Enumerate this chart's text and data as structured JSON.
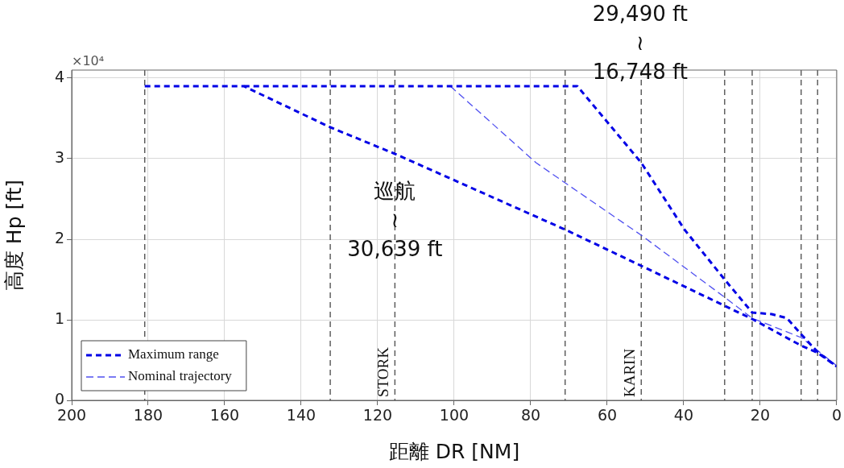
{
  "chart_data": {
    "type": "line",
    "xlabel": "距離 DR [NM]",
    "ylabel": "高度 Hp [ft]",
    "xlim": [
      200,
      0
    ],
    "xticks": [
      200,
      180,
      160,
      140,
      120,
      100,
      80,
      60,
      40,
      20,
      0
    ],
    "ylim": [
      0,
      4.1
    ],
    "yticks": [
      0,
      1,
      2,
      3,
      4
    ],
    "grid": true,
    "legend": "bottom left",
    "marker": "none",
    "line_style": "dashed",
    "series": [
      {
        "name": "Maximum range",
        "color": "#0000e6",
        "x": [
          180.9,
          155,
          132.4,
          115.5,
          71,
          51.1,
          22.1,
          9.3,
          5,
          0
        ],
        "values": [
          3.9,
          3.9,
          3.39,
          3.06,
          2.12,
          1.67,
          1.01,
          0.68,
          0.59,
          0.42
        ]
      },
      {
        "color": "#0000e6",
        "x": [
          155,
          67.8,
          51.1,
          39.8,
          29.3,
          22.1,
          17,
          13,
          9.3,
          5,
          0
        ],
        "values": [
          3.9,
          3.9,
          2.95,
          2.12,
          1.5,
          1.09,
          1.07,
          1.02,
          0.82,
          0.6,
          0.42
        ]
      },
      {
        "name": "Nominal trajectory",
        "color": "#5050f0",
        "x": [
          101,
          78.6,
          71,
          51.1,
          29.3,
          22.1,
          9.3,
          0
        ],
        "values": [
          3.9,
          2.95,
          2.7,
          2.05,
          1.28,
          1.02,
          0.78,
          0.43
        ]
      }
    ],
    "ref_lines": [
      {
        "axis": "x",
        "value": 180.9,
        "label": null,
        "color": "#555555",
        "line_style": "dashed"
      },
      {
        "axis": "x",
        "value": 132.4,
        "label": null,
        "color": "#555555",
        "line_style": "dashed"
      },
      {
        "axis": "x",
        "value": 115.5,
        "label": "STORK",
        "color": "#555555",
        "line_style": "dashed"
      },
      {
        "axis": "x",
        "value": 71,
        "label": null,
        "color": "#555555",
        "line_style": "dashed"
      },
      {
        "axis": "x",
        "value": 51.1,
        "label": "KARIN",
        "color": "#555555",
        "line_style": "dashed"
      },
      {
        "axis": "x",
        "value": 29.3,
        "label": null,
        "color": "#555555",
        "line_style": "dashed"
      },
      {
        "axis": "x",
        "value": 22.1,
        "label": null,
        "color": "#555555",
        "line_style": "dashed"
      },
      {
        "axis": "x",
        "value": 9.3,
        "label": null,
        "color": "#555555",
        "line_style": "dashed"
      },
      {
        "axis": "x",
        "value": 5,
        "label": null,
        "color": "#555555",
        "line_style": "dashed"
      }
    ],
    "annotations": [
      "×10⁴",
      {
        "text": "巡航\n≀\n30,639 ft",
        "x": 115.5,
        "y": 3.06
      },
      "29,490 ft\n≀\n16,748 ft"
    ]
  }
}
